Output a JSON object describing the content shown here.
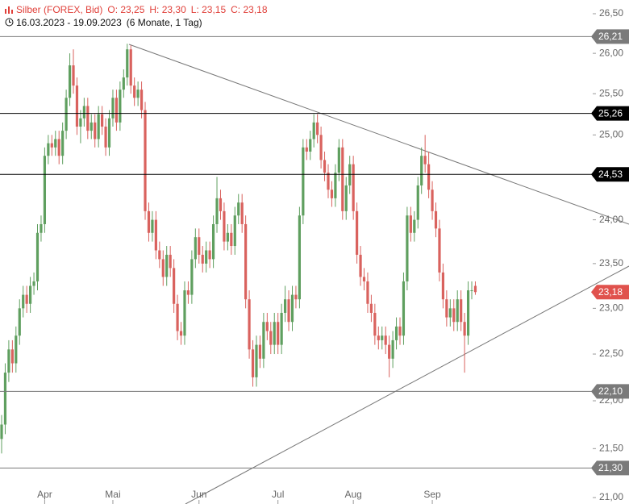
{
  "header": {
    "instrument": "Silber (FOREX, Bid)",
    "open": "O: 23,25",
    "high": "H: 23,30",
    "low": "L: 23,15",
    "close": "C: 23,18",
    "range": "16.03.2023 - 19.09.2023",
    "period": "(6 Monate, 1 Tag)"
  },
  "chart_data": {
    "type": "candlestick",
    "log_scale": true,
    "up_color": "#5f9f5f",
    "down_color": "#d9625e",
    "xlim": [
      -0.45,
      164.7
    ],
    "xticks": [
      {
        "value": 12,
        "label": "Apr"
      },
      {
        "value": 31,
        "label": "Mai"
      },
      {
        "value": 55,
        "label": "Jun"
      },
      {
        "value": 77,
        "label": "Jul"
      },
      {
        "value": 98,
        "label": "Aug"
      },
      {
        "value": 120,
        "label": "Sep"
      }
    ],
    "ylim": [
      21,
      26.5
    ],
    "yticks": [
      {
        "value": 21,
        "label": "21,00"
      },
      {
        "value": 21.5,
        "label": "21,50"
      },
      {
        "value": 22,
        "label": "22,00"
      },
      {
        "value": 22.5,
        "label": "22,50"
      },
      {
        "value": 23,
        "label": "23,00"
      },
      {
        "value": 23.5,
        "label": "23,50"
      },
      {
        "value": 24,
        "label": "24,00"
      },
      {
        "value": 24.5,
        "label": "24,50"
      },
      {
        "value": 25,
        "label": "25,00"
      },
      {
        "value": 25.5,
        "label": "25,50"
      },
      {
        "value": 26,
        "label": "26,00"
      },
      {
        "value": 26.5,
        "label": "26,50"
      }
    ],
    "open": [
      21.6,
      21.75,
      22.3,
      22.55,
      22.4,
      22.7,
      23.0,
      23.15,
      23.05,
      23.25,
      23.3,
      23.85,
      23.95,
      24.75,
      24.9,
      24.85,
      24.95,
      24.75,
      25.05,
      25.45,
      25.85,
      25.6,
      25.1,
      25.2,
      25.35,
      25.05,
      25.15,
      24.95,
      25.25,
      25.1,
      24.85,
      25.2,
      25.45,
      25.15,
      25.55,
      25.7,
      26.05,
      25.6,
      25.45,
      25.55,
      25.3,
      24.1,
      23.85,
      24.0,
      23.65,
      23.55,
      23.35,
      23.6,
      23.45,
      23.05,
      22.75,
      22.7,
      23.2,
      23.15,
      23.55,
      23.8,
      23.6,
      23.5,
      23.65,
      23.55,
      23.95,
      24.25,
      24.1,
      23.75,
      23.85,
      23.7,
      24.05,
      24.2,
      23.95,
      23.1,
      22.55,
      22.25,
      22.6,
      22.45,
      22.85,
      22.75,
      22.6,
      22.85,
      22.6,
      22.95,
      23.1,
      22.85,
      23.15,
      23.1,
      24.05,
      24.85,
      24.8,
      24.95,
      25.15,
      25.0,
      24.7,
      24.55,
      24.35,
      24.25,
      24.55,
      24.85,
      24.1,
      24.4,
      24.65,
      24.1,
      23.6,
      23.35,
      23.3,
      23.05,
      22.95,
      22.7,
      22.65,
      22.7,
      22.6,
      22.45,
      22.65,
      22.8,
      22.7,
      23.3,
      24.05,
      23.85,
      24.0,
      24.4,
      24.75,
      24.65,
      24.35,
      24.1,
      23.9,
      23.4,
      23.1,
      22.9,
      23.0,
      22.85,
      23.1,
      22.85,
      22.7,
      23.2,
      23.25
    ],
    "high": [
      21.85,
      22.4,
      22.65,
      22.65,
      22.8,
      23.1,
      23.25,
      23.25,
      23.35,
      23.4,
      23.95,
      24.05,
      24.85,
      25.0,
      25.0,
      25.05,
      25.05,
      25.15,
      25.55,
      26.0,
      26.05,
      25.7,
      25.3,
      25.45,
      25.45,
      25.25,
      25.25,
      25.35,
      25.35,
      25.2,
      25.3,
      25.55,
      25.55,
      25.65,
      25.8,
      26.12,
      26.1,
      25.7,
      25.65,
      25.65,
      25.4,
      24.2,
      24.1,
      24.1,
      23.75,
      23.65,
      23.7,
      23.7,
      23.55,
      23.15,
      22.85,
      23.3,
      23.3,
      23.65,
      23.9,
      23.9,
      23.7,
      23.75,
      23.75,
      24.05,
      24.5,
      24.35,
      24.2,
      23.95,
      23.95,
      24.15,
      24.3,
      24.3,
      24.05,
      23.2,
      22.65,
      22.7,
      22.7,
      22.95,
      22.95,
      22.85,
      22.95,
      22.95,
      23.05,
      23.25,
      23.2,
      23.25,
      23.25,
      24.15,
      24.95,
      24.95,
      25.05,
      25.25,
      25.25,
      25.1,
      24.8,
      24.65,
      24.45,
      24.65,
      24.95,
      24.95,
      24.5,
      24.75,
      24.75,
      24.2,
      23.7,
      23.45,
      23.4,
      23.15,
      23.05,
      22.8,
      22.8,
      22.8,
      22.7,
      22.75,
      22.9,
      22.9,
      23.4,
      24.15,
      24.15,
      24.1,
      24.5,
      24.85,
      25.0,
      24.8,
      24.45,
      24.2,
      24.0,
      23.5,
      23.2,
      23.1,
      23.1,
      23.2,
      23.2,
      22.95,
      23.3,
      23.3,
      23.3
    ],
    "low": [
      21.45,
      21.65,
      22.2,
      22.3,
      22.3,
      22.6,
      22.9,
      22.95,
      22.95,
      23.15,
      23.2,
      23.75,
      23.85,
      24.65,
      24.75,
      24.75,
      24.65,
      24.65,
      24.95,
      25.35,
      25.5,
      25.0,
      24.9,
      25.1,
      24.95,
      24.95,
      24.85,
      24.85,
      25.0,
      24.75,
      24.75,
      25.1,
      25.05,
      25.05,
      25.45,
      25.6,
      25.5,
      25.35,
      25.35,
      25.2,
      24.0,
      23.75,
      23.75,
      23.55,
      23.45,
      23.25,
      23.25,
      23.35,
      22.95,
      22.65,
      22.6,
      22.6,
      23.05,
      23.05,
      23.45,
      23.5,
      23.4,
      23.4,
      23.45,
      23.45,
      23.85,
      24.0,
      23.65,
      23.65,
      23.6,
      23.6,
      23.95,
      23.85,
      23.0,
      22.45,
      22.15,
      22.15,
      22.35,
      22.35,
      22.65,
      22.5,
      22.5,
      22.5,
      22.5,
      22.85,
      22.75,
      22.75,
      23.0,
      23.0,
      23.95,
      24.7,
      24.7,
      24.85,
      24.9,
      24.6,
      24.45,
      24.25,
      24.15,
      24.15,
      24.45,
      24.0,
      24.0,
      24.3,
      24.0,
      23.5,
      23.25,
      23.2,
      22.95,
      22.85,
      22.6,
      22.55,
      22.55,
      22.5,
      22.25,
      22.35,
      22.55,
      22.6,
      22.6,
      23.2,
      23.75,
      23.75,
      23.9,
      24.3,
      24.55,
      24.25,
      24.0,
      23.8,
      23.3,
      23.0,
      22.8,
      22.8,
      22.75,
      22.75,
      22.75,
      22.3,
      22.6,
      23.1,
      23.15
    ],
    "close": [
      21.75,
      22.3,
      22.55,
      22.4,
      22.7,
      23.0,
      23.15,
      23.05,
      23.25,
      23.3,
      23.85,
      23.95,
      24.75,
      24.9,
      24.85,
      24.95,
      24.75,
      25.05,
      25.45,
      25.85,
      25.6,
      25.1,
      25.2,
      25.35,
      25.05,
      25.15,
      24.95,
      25.25,
      25.1,
      24.85,
      25.2,
      25.45,
      25.15,
      25.55,
      25.7,
      26.05,
      25.6,
      25.45,
      25.55,
      25.3,
      24.1,
      23.85,
      24.0,
      23.65,
      23.55,
      23.35,
      23.6,
      23.45,
      23.05,
      22.75,
      22.7,
      23.2,
      23.15,
      23.55,
      23.8,
      23.6,
      23.5,
      23.65,
      23.55,
      23.95,
      24.25,
      24.1,
      23.75,
      23.85,
      23.7,
      24.05,
      24.2,
      23.95,
      23.1,
      22.55,
      22.25,
      22.6,
      22.45,
      22.85,
      22.75,
      22.6,
      22.85,
      22.6,
      22.95,
      23.1,
      22.85,
      23.15,
      23.1,
      24.05,
      24.85,
      24.8,
      24.95,
      25.15,
      25.0,
      24.7,
      24.55,
      24.35,
      24.25,
      24.55,
      24.85,
      24.1,
      24.4,
      24.65,
      24.1,
      23.6,
      23.35,
      23.3,
      23.05,
      22.95,
      22.7,
      22.65,
      22.7,
      22.6,
      22.45,
      22.65,
      22.8,
      22.7,
      23.3,
      24.05,
      23.85,
      24.0,
      24.4,
      24.75,
      24.65,
      24.35,
      24.1,
      23.9,
      23.4,
      23.1,
      22.9,
      23.0,
      22.85,
      23.1,
      22.85,
      22.7,
      23.2,
      23.2,
      23.18
    ],
    "levels": [
      {
        "value": 26.21,
        "label": "26,21",
        "color": "#7a7a7a",
        "line": true
      },
      {
        "value": 25.26,
        "label": "25,26",
        "color": "#000000",
        "line": true
      },
      {
        "value": 24.53,
        "label": "24,53",
        "color": "#000000",
        "line": true
      },
      {
        "value": 23.18,
        "label": "23,18",
        "color": "#e0524d",
        "line": false
      },
      {
        "value": 22.1,
        "label": "22,10",
        "color": "#7a7a7a",
        "line": true
      },
      {
        "value": 21.3,
        "label": "21,30",
        "color": "#7a7a7a",
        "line": true
      }
    ]
  }
}
